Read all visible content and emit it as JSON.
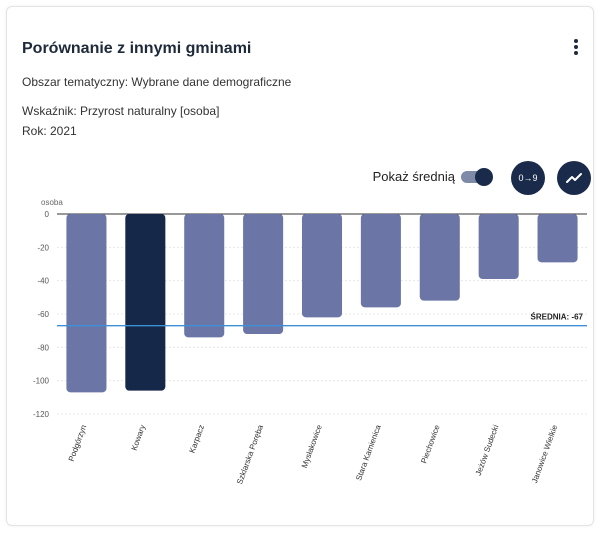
{
  "card": {
    "title": "Porównanie z innymi gminami",
    "area": "Obszar tematyczny: Wybrane dane demograficzne",
    "indicator": "Wskaźnik: Przyrost naturalny [osoba]",
    "year": "Rok: 2021",
    "menu_icon": "more-vertical-icon"
  },
  "controls": {
    "show_average_label": "Pokaż średnią",
    "show_average_on": true,
    "sort_button_label": "0→9",
    "trend_icon": "trend-line-icon"
  },
  "chart_data": {
    "type": "bar",
    "unit_label": "osoba",
    "categories": [
      "Podgórzyn",
      "Kowary",
      "Karpacz",
      "Szklarska Poręba",
      "Mysłakowice",
      "Stara Kamienica",
      "Piechowice",
      "Jeżów Sudecki",
      "Janowice Wielkie"
    ],
    "values": [
      -107,
      -106,
      -74,
      -72,
      -62,
      -56,
      -52,
      -39,
      -29
    ],
    "highlight_index": 1,
    "ylim": [
      -120,
      0
    ],
    "yticks": [
      0,
      -20,
      -40,
      -60,
      -80,
      -100,
      -120
    ],
    "average": -67,
    "average_label": "ŚREDNIA: -67",
    "colors": {
      "bar": "#6b76a6",
      "highlight": "#16284a",
      "average_line": "#3d8fd8",
      "grid": "#e8e8e8"
    }
  }
}
